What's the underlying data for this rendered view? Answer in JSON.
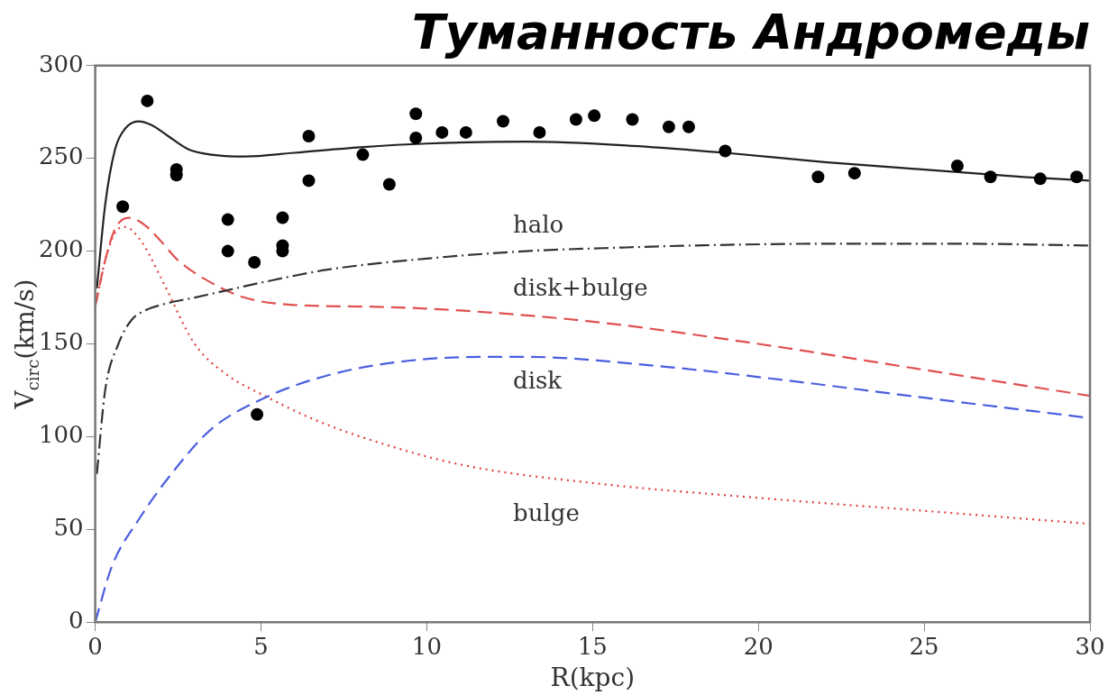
{
  "chart_data": {
    "type": "line",
    "title": "Туманность Андромеды",
    "xlabel": "R(kpc)",
    "ylabel": "V$_{circ}$(km/s)",
    "xlim": [
      0,
      30
    ],
    "xticks": [
      0,
      5,
      10,
      15,
      20,
      25,
      30
    ],
    "ylim": [
      0,
      300
    ],
    "yticks": [
      0,
      50,
      100,
      150,
      200,
      250,
      300
    ],
    "grid": false,
    "legend": false,
    "series": [
      {
        "type": "scatter",
        "marker": "circle",
        "color": "#000000",
        "x": [
          0.83,
          1.57,
          2.45,
          2.45,
          4.0,
          4.0,
          4.8,
          4.88,
          5.65,
          5.65,
          5.65,
          6.44,
          6.44,
          8.07,
          8.87,
          9.67,
          9.67,
          10.46,
          11.18,
          12.3,
          13.4,
          14.5,
          15.05,
          16.2,
          17.3,
          17.9,
          19.0,
          21.8,
          22.9,
          26.0,
          27.0,
          28.5,
          29.6
        ],
        "values": [
          224,
          281,
          244,
          241,
          217,
          200,
          194,
          112,
          218,
          203,
          200,
          262,
          238,
          252,
          236,
          274,
          261,
          264,
          264,
          270,
          264,
          271,
          273,
          271,
          267,
          267,
          254,
          240,
          242,
          246,
          240,
          239,
          240
        ]
      },
      {
        "line_style": "solid",
        "color": "#222222",
        "x": [
          0.05,
          0.3,
          0.6,
          0.9,
          1.3,
          1.7,
          2.2,
          2.8,
          3.5,
          4.5,
          6,
          8,
          10,
          13,
          16,
          19,
          22,
          25,
          28,
          30
        ],
        "values": [
          180,
          225,
          255,
          266,
          270,
          268,
          262,
          255,
          252,
          251,
          253,
          256,
          258,
          259,
          257,
          253,
          248,
          244,
          240,
          238
        ]
      },
      {
        "name": "halo",
        "line_style": "dashdot",
        "color": "#333333",
        "x": [
          0.05,
          0.3,
          0.7,
          1.1,
          1.5,
          2.2,
          3,
          4,
          5,
          7,
          10,
          13,
          16,
          18,
          22,
          26,
          30
        ],
        "values": [
          80,
          125,
          150,
          163,
          168,
          172,
          175,
          179,
          183,
          190,
          196,
          200,
          202,
          203,
          204,
          204,
          203
        ]
      },
      {
        "name": "disk+bulge",
        "line_style": "dashed",
        "color": "#e05050",
        "x": [
          0,
          0.3,
          0.6,
          1.0,
          1.5,
          2.0,
          2.5,
          3.5,
          4.5,
          6,
          8.5,
          11,
          15,
          20,
          25,
          30
        ],
        "values": [
          170,
          195,
          212,
          218,
          214,
          205,
          195,
          183,
          175,
          171,
          170,
          168,
          162,
          150,
          136,
          122
        ]
      },
      {
        "name": "disk",
        "line_style": "dashed",
        "color": "#4a5ee0",
        "x": [
          0,
          0.5,
          1.3,
          2.3,
          3.5,
          5,
          7,
          9.5,
          12,
          13,
          17,
          21,
          25,
          30
        ],
        "values": [
          0,
          30,
          55,
          80,
          104,
          120,
          133,
          141,
          143,
          143,
          138,
          130,
          121,
          110
        ]
      },
      {
        "name": "bulge",
        "line_style": "dotted",
        "color": "#e04040",
        "x": [
          0,
          0.3,
          0.6,
          0.9,
          1.4,
          2,
          3,
          4,
          5,
          6.5,
          8,
          11,
          15,
          20,
          25,
          30
        ],
        "values": [
          170,
          195,
          210,
          213,
          205,
          185,
          150,
          133,
          123,
          110,
          100,
          85,
          75,
          67,
          60,
          53
        ]
      }
    ]
  }
}
